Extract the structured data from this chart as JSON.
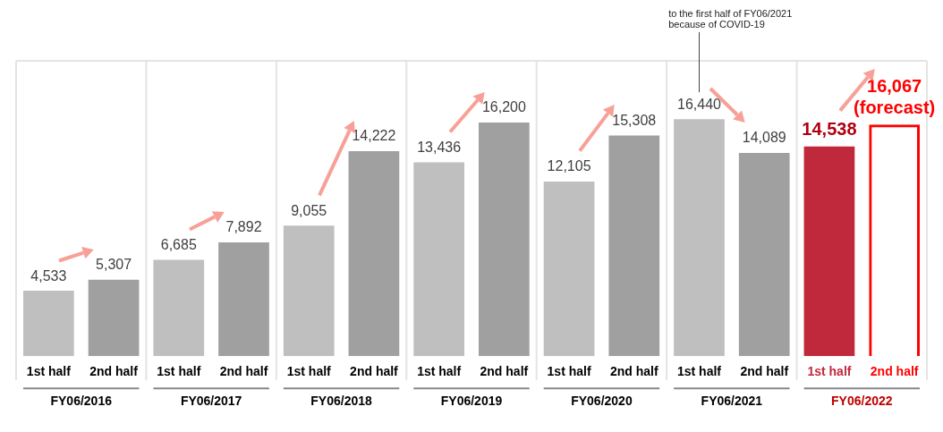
{
  "chart_data": {
    "type": "bar",
    "categories": [
      "1st half",
      "2nd half",
      "1st half",
      "2nd half",
      "1st half",
      "2nd half",
      "1st half",
      "2nd half",
      "1st half",
      "2nd half",
      "1st half",
      "2nd half",
      "1st half",
      "2nd half"
    ],
    "series": [
      {
        "color": "#bfbfbf",
        "colors": [
          "#bfbfbf",
          "#a0a0a0",
          "#bfbfbf",
          "#a0a0a0",
          "#bfbfbf",
          "#a0a0a0",
          "#bfbfbf",
          "#a0a0a0",
          "#bfbfbf",
          "#a0a0a0",
          "#bfbfbf",
          "#a0a0a0",
          "#c0283c",
          null
        ],
        "values": [
          4533,
          5307,
          6685,
          7892,
          9055,
          14222,
          13436,
          16200,
          12105,
          15308,
          16440,
          14089,
          14538,
          null
        ],
        "value_labels": [
          "4,533",
          "5,307",
          "6,685",
          "7,892",
          "9,055",
          "14,222",
          "13,436",
          "16,200",
          "12,105",
          "15,308",
          "16,440",
          "14,089",
          "14,538",
          null
        ]
      },
      {
        "color": "#ff0000",
        "line_style": "dashed",
        "values": [
          null,
          null,
          null,
          null,
          null,
          null,
          null,
          null,
          null,
          null,
          null,
          null,
          null,
          16067
        ],
        "value_labels": [
          null,
          null,
          null,
          null,
          null,
          null,
          null,
          null,
          null,
          null,
          null,
          null,
          null,
          "16,067\n(forecast)"
        ]
      }
    ],
    "annotations": [
      "FY06/2016",
      "FY06/2017",
      "FY06/2018",
      "FY06/2019",
      "FY06/2020",
      "FY06/2021",
      "FY06/2022",
      "to the first half of FY06/2021\nbecause of COVID-19"
    ],
    "legend": false,
    "grid": false
  }
}
